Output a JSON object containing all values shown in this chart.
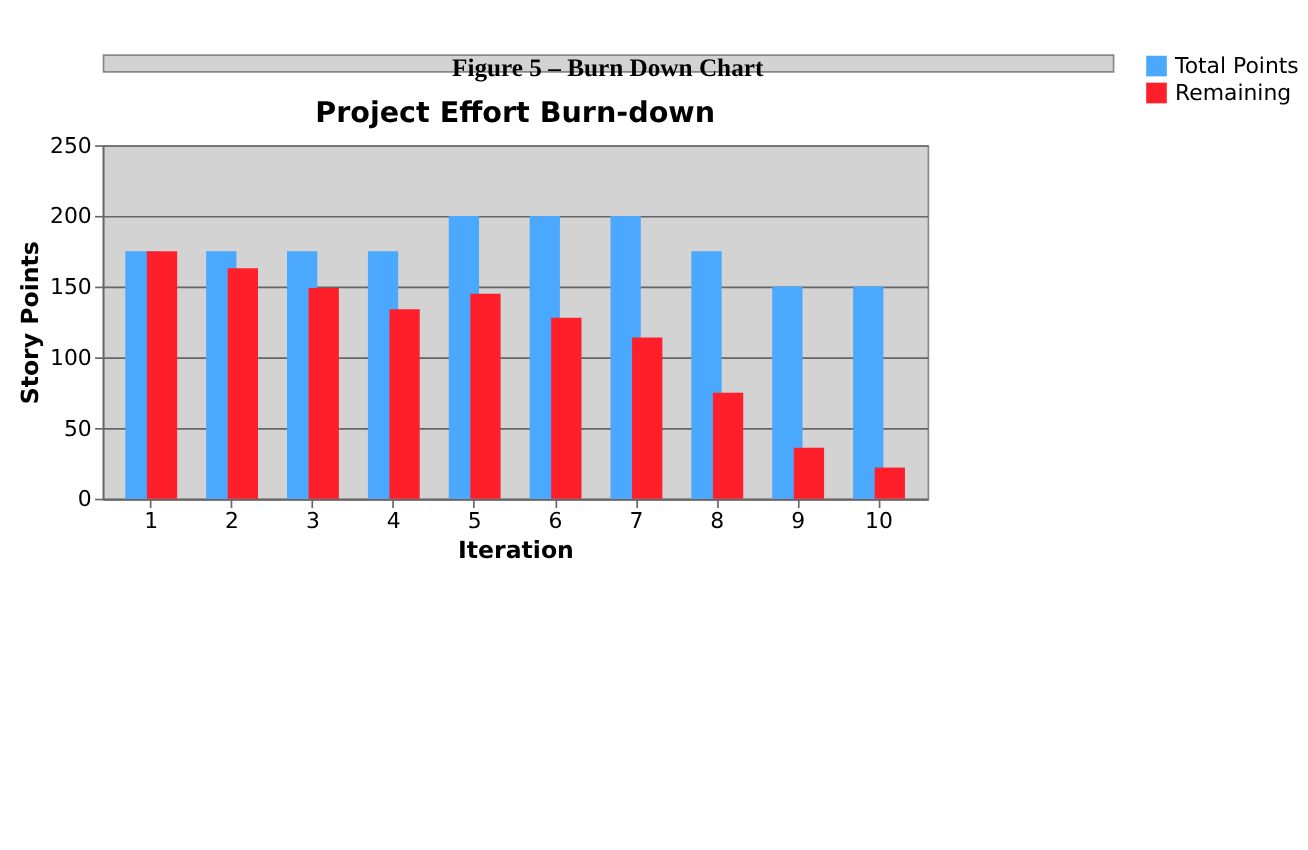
{
  "chart_data": {
    "type": "bar",
    "title": "Project Effort Burn-down",
    "xlabel": "Iteration",
    "ylabel": "Story Points",
    "categories": [
      "1",
      "2",
      "3",
      "4",
      "5",
      "6",
      "7",
      "8",
      "9",
      "10"
    ],
    "series": [
      {
        "name": "Total Points",
        "color": "#4aa8ff",
        "values": [
          175,
          175,
          175,
          175,
          200,
          200,
          200,
          175,
          150,
          150
        ]
      },
      {
        "name": "Remaining",
        "color": "#ff1f2b",
        "values": [
          175,
          163,
          149,
          134,
          145,
          128,
          114,
          75,
          36,
          22
        ]
      }
    ],
    "ylim": [
      0,
      250
    ],
    "yticks": [
      0,
      50,
      100,
      150,
      200,
      250
    ],
    "grid": "y",
    "legend": "right",
    "annotations": [
      "Figure 5 – Burn Down Chart"
    ]
  }
}
